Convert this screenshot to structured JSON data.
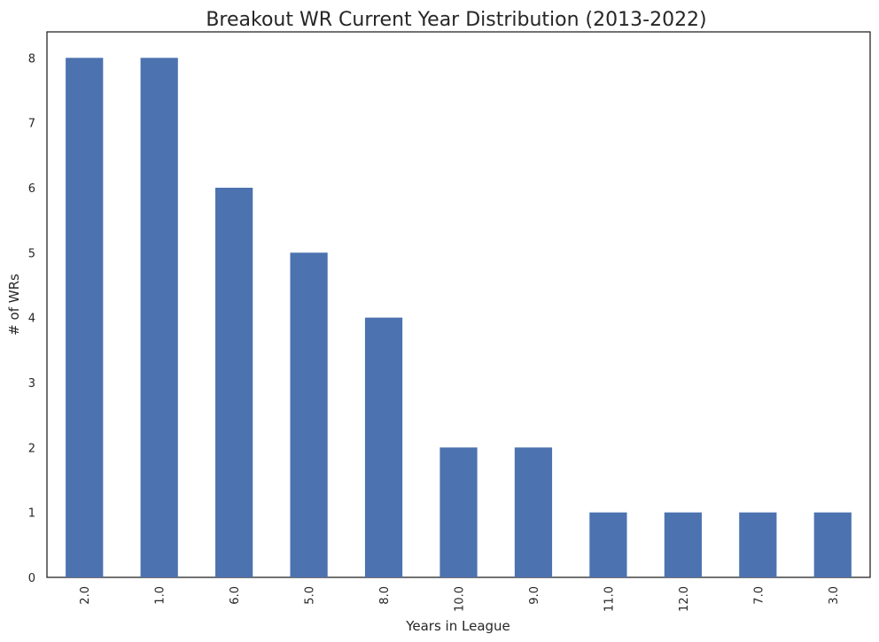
{
  "chart_data": {
    "type": "bar",
    "title": "Breakout WR Current Year Distribution (2013-2022)",
    "xlabel": "Years in League",
    "ylabel": "# of WRs",
    "categories": [
      "2.0",
      "1.0",
      "6.0",
      "5.0",
      "8.0",
      "10.0",
      "9.0",
      "11.0",
      "12.0",
      "7.0",
      "3.0"
    ],
    "values": [
      8,
      8,
      6,
      5,
      4,
      2,
      2,
      1,
      1,
      1,
      1
    ],
    "ylim": [
      0,
      8.4
    ],
    "yticks": [
      "0",
      "1",
      "2",
      "3",
      "4",
      "5",
      "6",
      "7",
      "8"
    ],
    "grid": false,
    "legend": "none",
    "bar_color": "#4c72b0"
  }
}
